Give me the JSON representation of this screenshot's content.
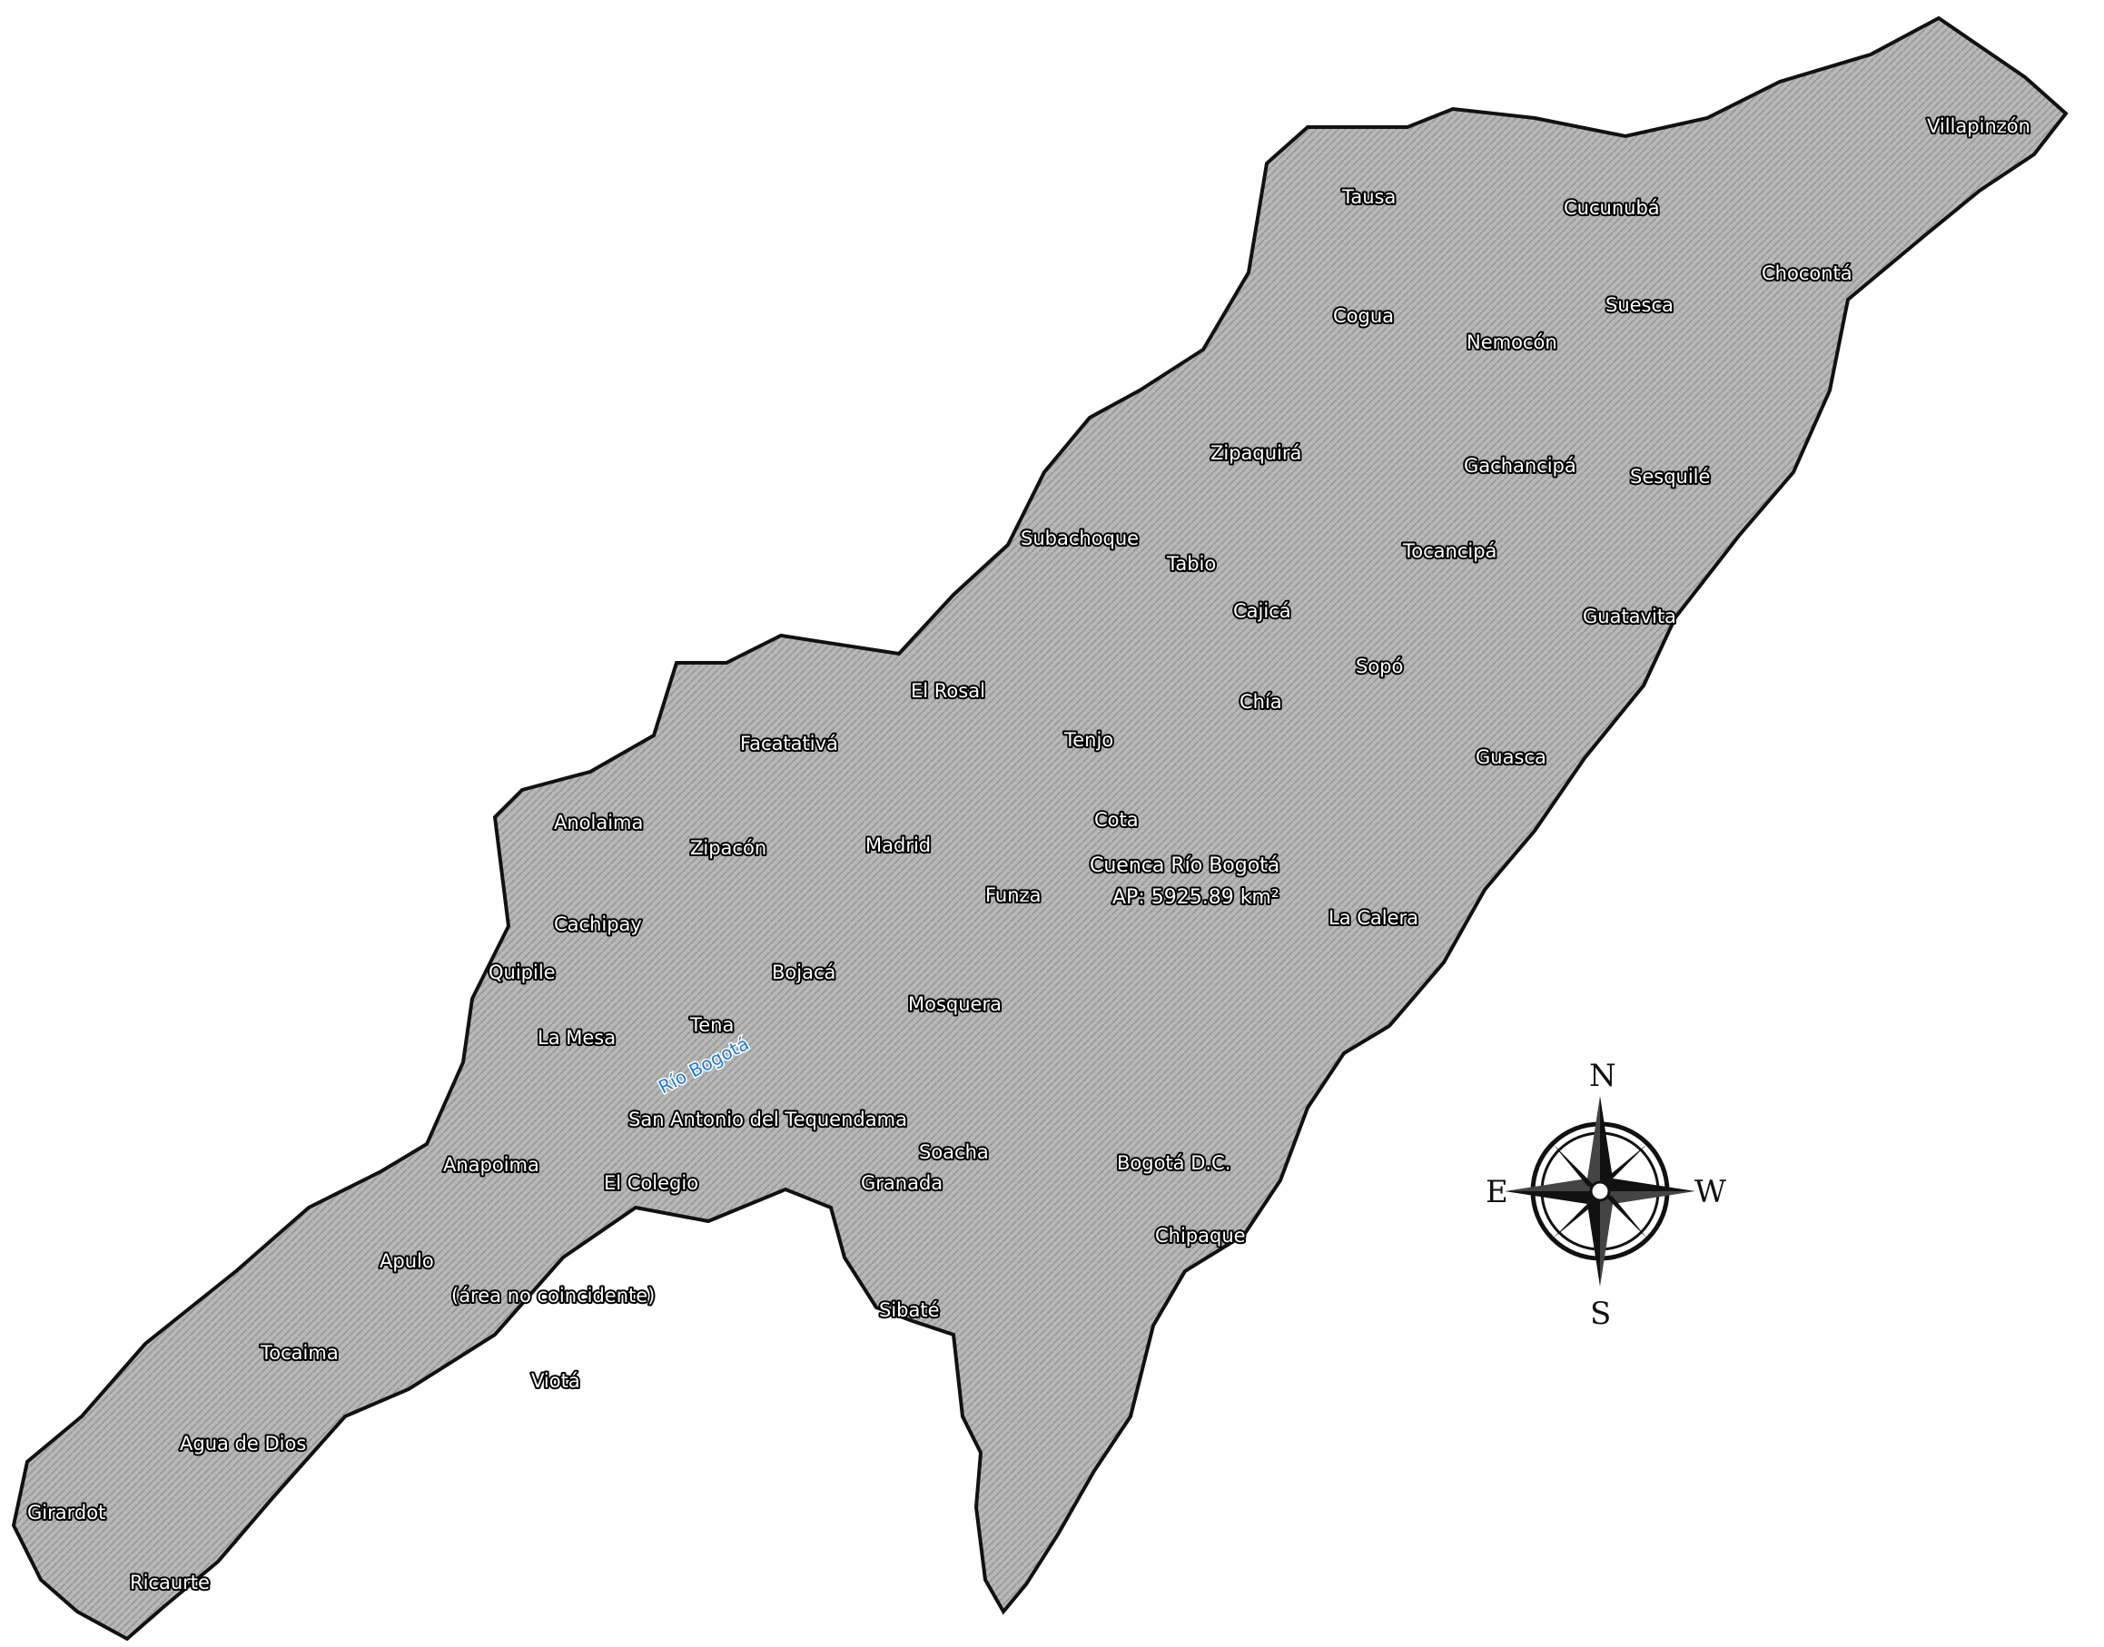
{
  "basin": {
    "name": "Cuenca Río Bogotá",
    "area": "AP: 5925.89 km²"
  },
  "river": {
    "name": "Río Bogotá"
  },
  "municipalities": [
    {
      "id": "villapinzon",
      "name": "Villapinzón"
    },
    {
      "id": "tausa",
      "name": "Tausa"
    },
    {
      "id": "cucunuba",
      "name": "Cucunubá"
    },
    {
      "id": "chocont",
      "name": "Chocontá"
    },
    {
      "id": "suesca",
      "name": "Suesca"
    },
    {
      "id": "cogua",
      "name": "Cogua"
    },
    {
      "id": "nemocon",
      "name": "Nemocón"
    },
    {
      "id": "zipaquira",
      "name": "Zipaquirá"
    },
    {
      "id": "gachancipa",
      "name": "Gachancipá"
    },
    {
      "id": "sesquile",
      "name": "Sesquilé"
    },
    {
      "id": "subachoque",
      "name": "Subachoque"
    },
    {
      "id": "tabio",
      "name": "Tabio"
    },
    {
      "id": "tocancipa",
      "name": "Tocancipá"
    },
    {
      "id": "cajica",
      "name": "Cajicá"
    },
    {
      "id": "guatavita",
      "name": "Guatavita"
    },
    {
      "id": "sopo",
      "name": "Sopó"
    },
    {
      "id": "el-rosal",
      "name": "El Rosal"
    },
    {
      "id": "chia",
      "name": "Chía"
    },
    {
      "id": "tenjo",
      "name": "Tenjo"
    },
    {
      "id": "facatativa",
      "name": "Facatativá"
    },
    {
      "id": "guasca",
      "name": "Guasca"
    },
    {
      "id": "anolaima",
      "name": "Anolaima"
    },
    {
      "id": "cota",
      "name": "Cota"
    },
    {
      "id": "zipacon",
      "name": "Zipacón"
    },
    {
      "id": "madrid",
      "name": "Madrid"
    },
    {
      "id": "funza",
      "name": "Funza"
    },
    {
      "id": "la-calera",
      "name": "La Calera"
    },
    {
      "id": "cachipay",
      "name": "Cachipay"
    },
    {
      "id": "quipile",
      "name": "Quipile"
    },
    {
      "id": "bojaca",
      "name": "Bojacá"
    },
    {
      "id": "mosquera",
      "name": "Mosquera"
    },
    {
      "id": "tena",
      "name": "Tena"
    },
    {
      "id": "la-mesa",
      "name": "La Mesa"
    },
    {
      "id": "san-antonio",
      "name": "San Antonio del Tequendama"
    },
    {
      "id": "soacha",
      "name": "Soacha"
    },
    {
      "id": "anapoima",
      "name": "Anapoima"
    },
    {
      "id": "bogota",
      "name": "Bogotá D.C."
    },
    {
      "id": "el-colegio",
      "name": "El Colegio"
    },
    {
      "id": "granada",
      "name": "Granada"
    },
    {
      "id": "chipaque",
      "name": "Chipaque"
    },
    {
      "id": "apulo",
      "name": "Apulo"
    },
    {
      "id": "area-no-coincidente",
      "name": "(área no coincidente)"
    },
    {
      "id": "sibate",
      "name": "Sibaté"
    },
    {
      "id": "tocaima",
      "name": "Tocaima"
    },
    {
      "id": "viota",
      "name": "Viotá"
    },
    {
      "id": "agua-de-dios",
      "name": "Agua de Dios"
    },
    {
      "id": "girardot",
      "name": "Girardot"
    },
    {
      "id": "ricaurte",
      "name": "Ricaurte"
    }
  ],
  "compass": {
    "north": "N",
    "south": "S",
    "east": "E",
    "west": "W"
  },
  "colors": {
    "terrain": "#b4b4b4",
    "urban": "#d8585f",
    "flood_dark": "#0a2a8c",
    "flood_mid": "#1656e0",
    "flood_light": "#57a8f0",
    "water": "#2fb7f0",
    "overlap": "#7a3b8c",
    "boundary": "#1a1a1a"
  }
}
